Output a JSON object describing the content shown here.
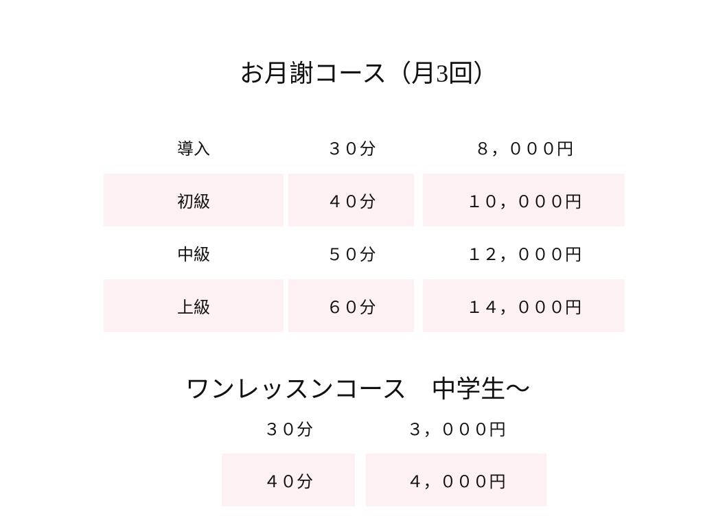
{
  "monthly": {
    "title": "お月謝コース（月3回）",
    "rows": [
      {
        "level": "導入",
        "duration": "３０分",
        "price": "８，０００円"
      },
      {
        "level": "初級",
        "duration": "４０分",
        "price": "１０，０００円"
      },
      {
        "level": "中級",
        "duration": "５０分",
        "price": "１２，０００円"
      },
      {
        "level": "上級",
        "duration": "６０分",
        "price": "１４，０００円"
      }
    ]
  },
  "single": {
    "title": "ワンレッスンコース　中学生〜",
    "rows": [
      {
        "duration": "３０分",
        "price": "３，０００円"
      },
      {
        "duration": "４０分",
        "price": "４，０００円"
      }
    ]
  },
  "colors": {
    "row_highlight": "#fdf1f3"
  }
}
